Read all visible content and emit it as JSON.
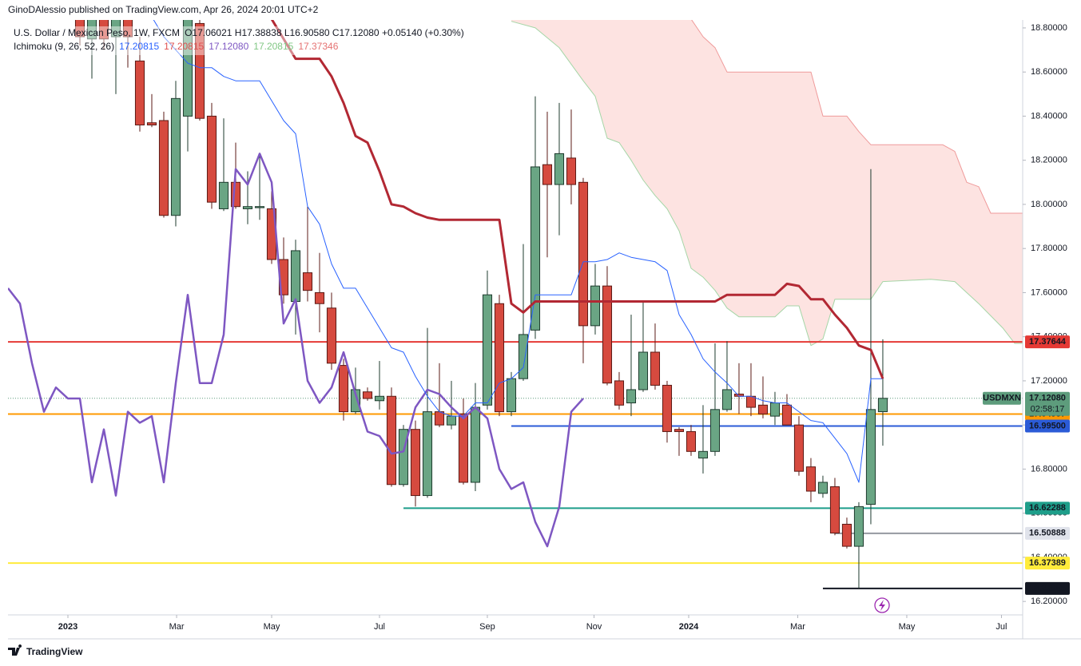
{
  "header": {
    "text": "GinoDAlessio published on TradingView.com, Apr 26, 2024 20:01 UTC+2"
  },
  "footer": {
    "brand": "TradingView"
  },
  "chart_data": {
    "type": "candlestick",
    "symbol_line": "U.S. Dollar / Mexican Peso, 1W, FXCM",
    "ohlc_line": "O17.06021 H17.38838 L16.90580 C17.12080 +0.05140 (+0.30%)",
    "indicator": {
      "name": "Ichimoku (9, 26, 52, 26)",
      "readouts": [
        {
          "text": "17.20815",
          "color": "#2962ff"
        },
        {
          "text": "17.20815",
          "color": "#e05050"
        },
        {
          "text": "17.12080",
          "color": "#7e57c2"
        },
        {
          "text": "17.20815",
          "color": "#81c784"
        },
        {
          "text": "17.37346",
          "color": "#e57373"
        }
      ]
    },
    "up_color": "#6aa584",
    "up_border": "#1e3b2e",
    "down_color": "#d64a3f",
    "down_border": "#5b1a15",
    "open": [
      18.9,
      18.75,
      18.9,
      18.76,
      18.92,
      18.65,
      18.37,
      18.38,
      17.95,
      18.4,
      18.82,
      18.4,
      17.98,
      18.1,
      17.98,
      17.985,
      17.98,
      17.75,
      17.56,
      17.69,
      17.6,
      17.53,
      17.27,
      17.06,
      17.15,
      17.11,
      17.13,
      16.73,
      16.98,
      16.68,
      17.06,
      17.0,
      17.05,
      16.74,
      17.09,
      17.55,
      17.06,
      17.21,
      17.43,
      18.18,
      18.09,
      18.21,
      18.1,
      17.45,
      17.63,
      17.2,
      17.1,
      17.16,
      17.33,
      17.18,
      16.98,
      16.97,
      16.85,
      16.88,
      17.07,
      17.14,
      17.13,
      17.09,
      17.04,
      17.09,
      17.0,
      16.81,
      16.69,
      16.72,
      16.55,
      16.45,
      16.64,
      17.06021
    ],
    "high": [
      19.0,
      18.95,
      18.95,
      18.95,
      18.95,
      18.76,
      18.5,
      18.42,
      18.56,
      18.95,
      18.9,
      18.46,
      18.39,
      18.28,
      18.15,
      18.22,
      18.06,
      17.85,
      17.84,
      17.99,
      17.78,
      17.6,
      17.3,
      17.26,
      17.17,
      17.29,
      17.17,
      17.0,
      17.02,
      17.44,
      17.28,
      17.2,
      17.12,
      17.19,
      17.7,
      17.59,
      17.24,
      17.82,
      18.49,
      18.42,
      18.46,
      18.43,
      18.12,
      17.73,
      17.72,
      17.24,
      17.5,
      17.56,
      17.46,
      17.2,
      16.99,
      17.0,
      17.09,
      17.37,
      17.38,
      17.28,
      17.28,
      17.22,
      17.15,
      17.14,
      17.04,
      16.85,
      16.77,
      16.76,
      16.58,
      16.65,
      18.16,
      17.38838
    ],
    "low": [
      18.72,
      18.57,
      18.7,
      18.5,
      18.62,
      18.33,
      18.35,
      17.94,
      17.9,
      18.24,
      18.38,
      17.98,
      17.97,
      17.98,
      17.91,
      17.93,
      17.73,
      17.55,
      17.41,
      17.56,
      17.42,
      17.25,
      17.02,
      17.05,
      17.11,
      17.07,
      16.72,
      16.72,
      16.63,
      16.67,
      16.99,
      16.98,
      16.73,
      16.7,
      17.07,
      17.04,
      17.04,
      17.2,
      17.39,
      17.76,
      17.86,
      18.0,
      17.28,
      17.41,
      17.18,
      17.07,
      17.04,
      17.15,
      17.16,
      16.92,
      16.86,
      16.86,
      16.78,
      16.86,
      17.06,
      17.05,
      17.04,
      17.03,
      17.0,
      17.0,
      16.77,
      16.65,
      16.67,
      16.5,
      16.44,
      16.26,
      16.55,
      16.9058
    ],
    "close": [
      18.76,
      18.9,
      18.75,
      18.9,
      18.76,
      18.36,
      18.36,
      17.95,
      18.48,
      18.85,
      18.39,
      18.01,
      18.1,
      17.99,
      17.99,
      17.99,
      17.75,
      17.59,
      17.79,
      17.61,
      17.55,
      17.28,
      17.06,
      17.16,
      17.12,
      17.13,
      16.73,
      16.98,
      16.68,
      17.06,
      17.0,
      17.04,
      16.74,
      17.08,
      17.59,
      17.06,
      17.21,
      17.41,
      18.17,
      18.09,
      18.23,
      18.09,
      17.45,
      17.63,
      17.19,
      17.09,
      17.16,
      17.33,
      17.18,
      16.97,
      16.97,
      16.88,
      16.88,
      17.07,
      17.16,
      17.13,
      17.08,
      17.05,
      17.1,
      17.0,
      16.79,
      16.7,
      16.74,
      16.51,
      16.45,
      16.63,
      17.07,
      17.1208
    ],
    "cloud": {
      "fill": "#fde3e1",
      "span_a": {
        "color": "#a5d6a7",
        "x": [
          36,
          38,
          40,
          42,
          43,
          44,
          45,
          46,
          47,
          48,
          49,
          50,
          51,
          52,
          53,
          54,
          55,
          58,
          59,
          60,
          61,
          62,
          63,
          66,
          67,
          71,
          73,
          75,
          77,
          78,
          78.67
        ],
        "values": [
          18.83,
          18.8,
          18.71,
          18.56,
          18.49,
          18.3,
          18.28,
          18.2,
          18.11,
          18.04,
          17.98,
          17.88,
          17.71,
          17.67,
          17.61,
          17.53,
          17.49,
          17.49,
          17.54,
          17.54,
          17.36,
          17.39,
          17.57,
          17.57,
          17.65,
          17.66,
          17.65,
          17.55,
          17.44,
          17.37,
          17.37
        ]
      },
      "span_b": {
        "color": "#ef9a9a",
        "x": [
          51,
          52,
          53,
          54,
          61,
          62,
          64,
          65,
          66,
          72,
          73,
          74,
          75,
          76,
          78.67
        ],
        "values": [
          18.84,
          18.76,
          18.71,
          18.6,
          18.6,
          18.4,
          18.4,
          18.33,
          18.27,
          18.27,
          18.24,
          18.1,
          18.08,
          17.96,
          17.96
        ]
      }
    },
    "series": [
      {
        "color": "#7e57c2",
        "line_width": 2.5,
        "x": [
          -6,
          -5,
          -4,
          -3,
          -2,
          -1,
          0,
          1,
          2,
          3,
          4,
          5,
          6,
          7,
          8,
          9,
          10,
          11,
          12,
          13,
          14,
          15,
          16,
          17,
          18,
          19,
          20,
          21,
          22,
          23,
          24,
          25,
          26,
          27,
          28,
          29,
          30,
          31,
          32,
          33,
          34,
          35,
          36,
          37,
          38,
          39,
          40,
          41,
          42
        ],
        "values": [
          17.62,
          17.55,
          17.28,
          17.06,
          17.17,
          17.12,
          17.12,
          16.74,
          16.98,
          16.68,
          17.06,
          17.01,
          17.04,
          16.74,
          17.19,
          17.59,
          17.19,
          17.19,
          17.41,
          18.16,
          18.09,
          18.23,
          18.1,
          17.46,
          17.57,
          17.2,
          17.1,
          17.17,
          17.33,
          17.14,
          16.97,
          16.95,
          16.87,
          16.88,
          17.08,
          17.16,
          17.14,
          17.08,
          17.03,
          17.08,
          17.03,
          16.8,
          16.71,
          16.74,
          16.56,
          16.45,
          16.63,
          17.06,
          17.12
        ]
      },
      {
        "color": "#2962ff",
        "line_width": 1,
        "x": [
          6,
          7,
          8,
          9,
          10,
          11,
          12,
          13,
          14,
          15,
          16,
          17,
          18,
          19,
          20,
          21,
          22,
          23,
          24,
          25,
          26,
          27,
          28,
          29,
          30,
          31,
          32,
          33,
          34,
          35,
          36,
          37,
          38,
          39,
          40,
          41,
          42,
          43,
          44,
          45,
          46,
          47,
          48,
          49,
          50,
          51,
          52,
          53,
          54,
          55,
          56,
          57,
          58,
          59,
          60,
          61,
          62,
          63,
          64,
          65,
          66,
          67
        ],
        "values": [
          18.85,
          18.76,
          18.7,
          18.64,
          18.62,
          18.62,
          18.58,
          18.56,
          18.56,
          18.56,
          18.47,
          18.38,
          18.32,
          17.99,
          17.91,
          17.73,
          17.62,
          17.62,
          17.53,
          17.44,
          17.35,
          17.33,
          17.22,
          17.13,
          17.06,
          17.04,
          17.04,
          17.1,
          17.1,
          17.19,
          17.21,
          17.26,
          17.59,
          17.59,
          17.59,
          17.59,
          17.74,
          17.74,
          17.75,
          17.78,
          17.76,
          17.75,
          17.74,
          17.7,
          17.5,
          17.41,
          17.3,
          17.24,
          17.19,
          17.13,
          17.13,
          17.11,
          17.1,
          17.1,
          17.06,
          17.02,
          17.01,
          16.94,
          16.87,
          16.74,
          17.21,
          17.21
        ]
      },
      {
        "color": "#b22833",
        "line_width": 3,
        "x": [
          16,
          17,
          18,
          19,
          20,
          21,
          22,
          23,
          24,
          25,
          26,
          27,
          28,
          29,
          30,
          31,
          32,
          33,
          34,
          35,
          36,
          37,
          38,
          39,
          40,
          41,
          42,
          43,
          44,
          45,
          46,
          47,
          48,
          49,
          50,
          51,
          52,
          53,
          54,
          55,
          56,
          57,
          58,
          59,
          60,
          61,
          62,
          63,
          64,
          65,
          66,
          67
        ],
        "values": [
          18.84,
          18.75,
          18.66,
          18.66,
          18.66,
          18.58,
          18.46,
          18.31,
          18.28,
          18.15,
          18.0,
          17.99,
          17.96,
          17.94,
          17.93,
          17.93,
          17.93,
          17.93,
          17.93,
          17.93,
          17.55,
          17.51,
          17.56,
          17.56,
          17.56,
          17.56,
          17.56,
          17.56,
          17.56,
          17.56,
          17.56,
          17.56,
          17.56,
          17.56,
          17.56,
          17.56,
          17.56,
          17.56,
          17.59,
          17.59,
          17.59,
          17.59,
          17.59,
          17.64,
          17.63,
          17.57,
          17.57,
          17.5,
          17.44,
          17.36,
          17.34,
          17.21
        ]
      }
    ],
    "levels": [
      {
        "value": 17.37644,
        "color": "#e53935",
        "text_color": "#ffffff"
      },
      {
        "value": 17.04957,
        "color": "#ff9800",
        "text_color": "#131722"
      },
      {
        "value": 16.995,
        "label": "16.99500",
        "color": "#2b5bd7",
        "text_color": "#ffffff",
        "x_start": 36
      },
      {
        "value": 16.62288,
        "color": "#1e9e8a",
        "text_color": "#131722",
        "x_start": 27
      },
      {
        "value": 16.50888,
        "color": "#9598a1",
        "label_color": "#e0e3eb",
        "text_color": "#131722",
        "x_start": 63
      },
      {
        "value": 16.37389,
        "color": "#ffeb3b",
        "text_color": "#131722"
      },
      {
        "value": 16.25886,
        "color": "#131722",
        "text_color": "#ffffff",
        "x_start": 62
      }
    ],
    "last_price": {
      "symbol": "USDMXN",
      "value": 17.1208,
      "label": "17.12080",
      "countdown": "02:58:17",
      "color": "#5d9c7c"
    },
    "xlim": [
      -6,
      78.67
    ],
    "xticks": [
      {
        "value": -1,
        "label": "2023"
      },
      {
        "value": 8.07,
        "label": "Mar"
      },
      {
        "value": 16,
        "label": "May"
      },
      {
        "value": 25,
        "label": "Jul"
      },
      {
        "value": 34,
        "label": "Sep"
      },
      {
        "value": 42.9,
        "label": "Nov"
      },
      {
        "value": 50.8,
        "label": "2024"
      },
      {
        "value": 59.9,
        "label": "Mar"
      },
      {
        "value": 69,
        "label": "May"
      },
      {
        "value": 76.9,
        "label": "Jul"
      }
    ],
    "ylim": [
      16.139,
      18.836
    ],
    "yticks": [
      {
        "value": 18.8,
        "label": "18.80000"
      },
      {
        "value": 18.6,
        "label": "18.60000"
      },
      {
        "value": 18.4,
        "label": "18.40000"
      },
      {
        "value": 18.2,
        "label": "18.20000"
      },
      {
        "value": 18.0,
        "label": "18.00000"
      },
      {
        "value": 17.8,
        "label": "17.80000"
      },
      {
        "value": 17.6,
        "label": "17.60000"
      },
      {
        "value": 17.4,
        "label": "17.40000"
      },
      {
        "value": 17.2,
        "label": "17.20000"
      },
      {
        "value": 17.0,
        "label": "17.00000"
      },
      {
        "value": 16.8,
        "label": "16.80000"
      },
      {
        "value": 16.6,
        "label": "16.60000"
      },
      {
        "value": 16.4,
        "label": "16.40000"
      },
      {
        "value": 16.2,
        "label": "16.20000"
      }
    ],
    "grid": false
  }
}
